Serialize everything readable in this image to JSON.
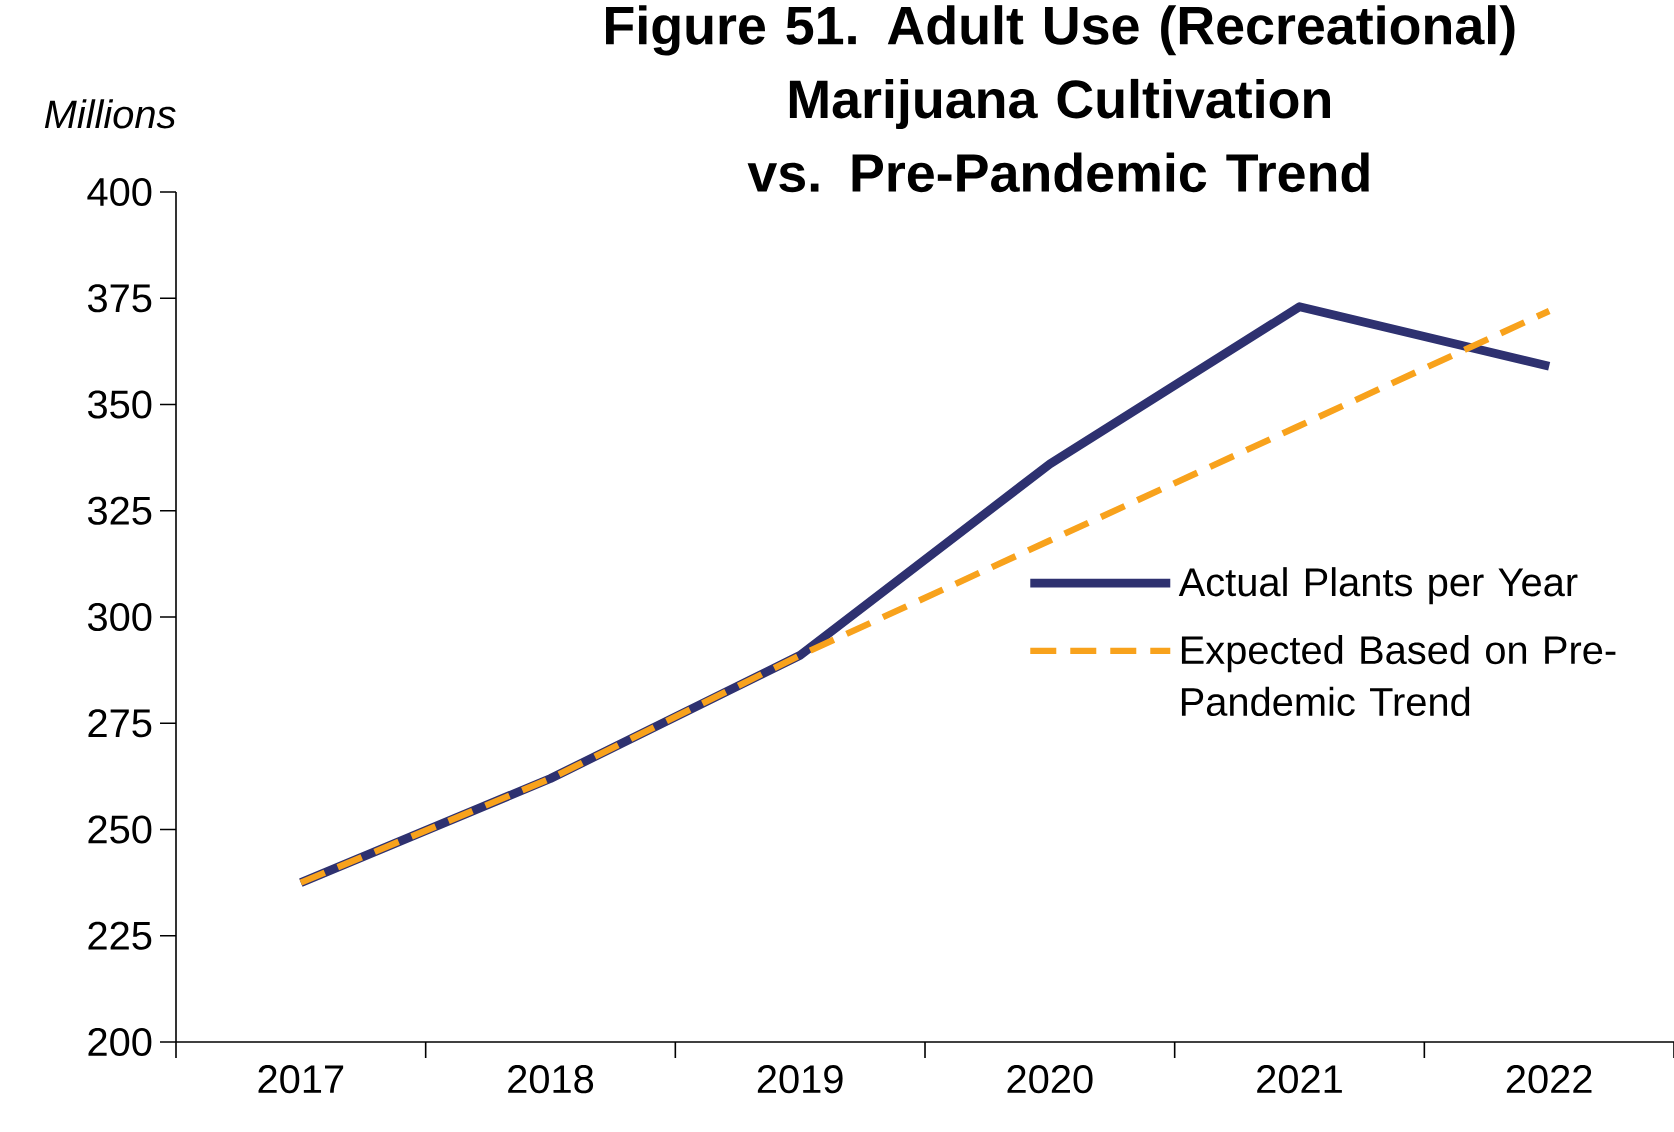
{
  "chart_data": {
    "type": "line",
    "title": "Figure 51. Adult Use (Recreational) Marijuana Cultivation vs. Pre-Pandemic Trend",
    "ylabel": "Millions",
    "categories": [
      "2017",
      "2018",
      "2019",
      "2020",
      "2021",
      "2022"
    ],
    "series": [
      {
        "name": "Actual Plants per Year",
        "color": "#2e3170",
        "line_style": "solid",
        "values": [
          237.5,
          262,
          291,
          336,
          373,
          359
        ]
      },
      {
        "name": "Expected Based on Pre-Pandemic Trend",
        "color": "#f8a21c",
        "line_style": "dashed",
        "values": [
          237.5,
          262,
          291,
          318,
          345,
          372
        ]
      }
    ],
    "ylim": [
      200,
      400
    ],
    "yticks": [
      200,
      225,
      250,
      275,
      300,
      325,
      350,
      375,
      400
    ],
    "legend": "right"
  }
}
